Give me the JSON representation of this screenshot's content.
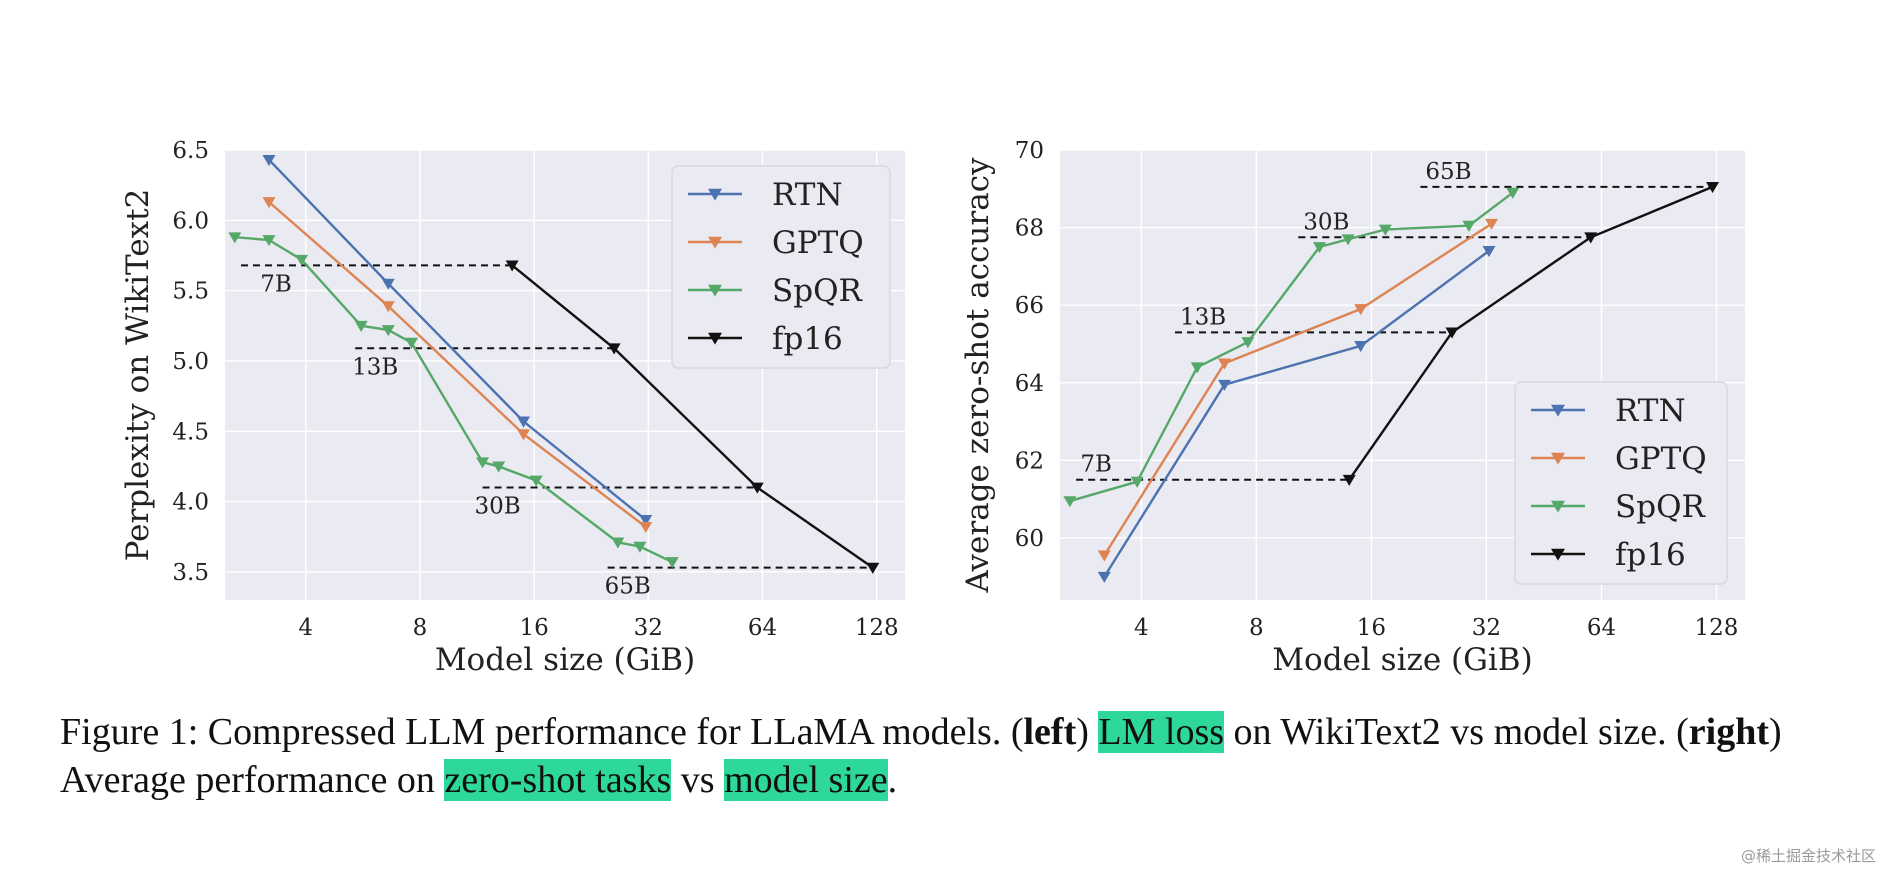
{
  "chart_data": [
    {
      "type": "line",
      "xscale": "log2",
      "xlabel": "Model size (GiB)",
      "ylabel": "Perplexity on WikiText2",
      "xticks": [
        4,
        8,
        16,
        32,
        64,
        128
      ],
      "xtick_labels": [
        "4",
        "8",
        "16",
        "32",
        "64",
        "128"
      ],
      "yticks": [
        3.5,
        4.0,
        4.5,
        5.0,
        5.5,
        6.0,
        6.5
      ],
      "ytick_labels": [
        "3.5",
        "4.0",
        "4.5",
        "5.0",
        "5.5",
        "6.0",
        "6.5"
      ],
      "xlim": [
        2.45,
        152
      ],
      "ylim": [
        3.3,
        6.5
      ],
      "legend_position": "top-right",
      "series": [
        {
          "name": "RTN",
          "color": "#4c72b0",
          "x": [
            3.2,
            6.6,
            15.0,
            31.5
          ],
          "y": [
            6.43,
            5.55,
            4.57,
            3.87
          ]
        },
        {
          "name": "GPTQ",
          "color": "#dd8452",
          "x": [
            3.2,
            6.6,
            15.0,
            31.5
          ],
          "y": [
            6.13,
            5.39,
            4.48,
            3.82
          ]
        },
        {
          "name": "SpQR",
          "color": "#55a868",
          "x": [
            2.6,
            3.2,
            3.9,
            5.6,
            6.6,
            7.6,
            11.7,
            12.9,
            16.2,
            26.6,
            30.4,
            37.0
          ],
          "y": [
            5.88,
            5.86,
            5.72,
            5.25,
            5.22,
            5.13,
            4.28,
            4.25,
            4.15,
            3.71,
            3.68,
            3.57
          ]
        },
        {
          "name": "fp16",
          "color": "#111111",
          "x": [
            14.0,
            26.0,
            62.0,
            125.0
          ],
          "y": [
            5.68,
            5.09,
            4.1,
            3.53
          ]
        }
      ],
      "reference_lines": [
        {
          "label": "7B",
          "y": 5.68,
          "x_from": 2.7,
          "x_to": 14.0
        },
        {
          "label": "13B",
          "y": 5.09,
          "x_from": 5.4,
          "x_to": 26.0
        },
        {
          "label": "30B",
          "y": 4.1,
          "x_from": 11.7,
          "x_to": 62.0
        },
        {
          "label": "65B",
          "y": 3.53,
          "x_from": 25.0,
          "x_to": 125.0
        }
      ]
    },
    {
      "type": "line",
      "xscale": "log2",
      "xlabel": "Model size (GiB)",
      "ylabel": "Average zero-shot accuracy",
      "xticks": [
        4,
        8,
        16,
        32,
        64,
        128
      ],
      "xtick_labels": [
        "4",
        "8",
        "16",
        "32",
        "64",
        "128"
      ],
      "yticks": [
        60,
        62,
        64,
        66,
        68,
        70
      ],
      "ytick_labels": [
        "60",
        "62",
        "64",
        "66",
        "68",
        "70"
      ],
      "xlim": [
        2.45,
        152
      ],
      "ylim": [
        58.4,
        70
      ],
      "legend_position": "bottom-right",
      "series": [
        {
          "name": "RTN",
          "color": "#4c72b0",
          "x": [
            3.2,
            6.6,
            15.0,
            32.5
          ],
          "y": [
            59.0,
            63.95,
            64.95,
            67.4
          ]
        },
        {
          "name": "GPTQ",
          "color": "#dd8452",
          "x": [
            3.2,
            6.6,
            15.0,
            33.0
          ],
          "y": [
            59.55,
            64.5,
            65.9,
            68.1
          ]
        },
        {
          "name": "SpQR",
          "color": "#55a868",
          "x": [
            2.6,
            3.9,
            5.6,
            7.6,
            11.7,
            13.9,
            17.4,
            28.8,
            37.5
          ],
          "y": [
            60.95,
            61.45,
            64.4,
            65.05,
            67.5,
            67.7,
            67.95,
            68.05,
            68.9
          ]
        },
        {
          "name": "fp16",
          "color": "#111111",
          "x": [
            14.0,
            26.0,
            60.0,
            125.0
          ],
          "y": [
            61.5,
            65.3,
            67.75,
            69.05
          ]
        }
      ],
      "reference_lines": [
        {
          "label": "7B",
          "y": 61.5,
          "x_from": 2.7,
          "x_to": 14.0
        },
        {
          "label": "13B",
          "y": 65.3,
          "x_from": 4.9,
          "x_to": 26.0
        },
        {
          "label": "30B",
          "y": 67.75,
          "x_from": 10.3,
          "x_to": 60.0
        },
        {
          "label": "65B",
          "y": 69.05,
          "x_from": 21.5,
          "x_to": 125.0
        }
      ]
    }
  ],
  "caption": {
    "prefix": "Figure 1: Compressed LLM performance for LLaMA models. (",
    "left_bold": "left",
    "after_left": ") ",
    "hl_lm_loss": "LM loss",
    "mid1": " on WikiText2 vs model size. (",
    "right_bold": "right",
    "mid2": ") Average performance on ",
    "hl_zero_shot": "zero-shot tasks",
    "vs": " vs ",
    "hl_model_size": "model size",
    "end": "."
  },
  "watermark": "@稀土掘金技术社区"
}
